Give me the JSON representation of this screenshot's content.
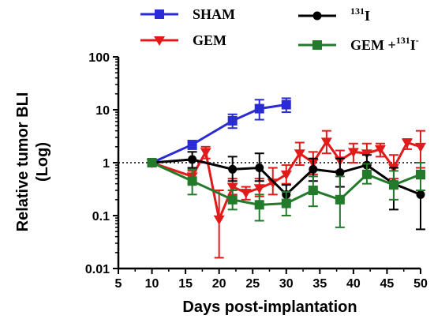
{
  "chart_data": {
    "type": "line",
    "xlabel": "Days post-implantation",
    "ylabel_lines": [
      "Relative tumor BLI",
      "(Log)"
    ],
    "xlim": [
      5,
      50
    ],
    "ylim": [
      0.01,
      100
    ],
    "y_scale": "log",
    "x_ticks": [
      5,
      10,
      15,
      20,
      25,
      30,
      35,
      40,
      45,
      50
    ],
    "y_ticks": [
      0.01,
      0.1,
      1,
      10,
      100
    ],
    "y_tick_labels": [
      "0.01",
      "0.1",
      "1",
      "10",
      "100"
    ],
    "reference_line": {
      "y": 1,
      "style": "dotted"
    },
    "legend": [
      {
        "series": 0,
        "text": "SHAM",
        "sup": "",
        "suffix": ""
      },
      {
        "series": 1,
        "text": "GEM",
        "sup": "",
        "suffix": ""
      },
      {
        "series": 2,
        "text": "",
        "sup": "131",
        "suffix": "I"
      },
      {
        "series": 3,
        "text": "GEM +",
        "sup": "131",
        "suffix": "I",
        "sup2": "-"
      }
    ],
    "series": [
      {
        "color": "#2b2bd6",
        "marker": "square",
        "x": [
          10,
          16,
          22,
          26,
          30
        ],
        "y": [
          1.0,
          2.2,
          6.2,
          10.5,
          12.5
        ],
        "err_low": [
          1.0,
          1.8,
          4.5,
          6.5,
          9.0
        ],
        "err_high": [
          1.0,
          2.6,
          8.2,
          15.5,
          16.5
        ]
      },
      {
        "color": "#e11b1b",
        "marker": "triangle-down",
        "x": [
          10,
          16,
          18,
          20,
          22,
          24,
          26,
          28,
          30,
          32,
          34,
          36,
          38,
          40,
          42,
          44,
          46,
          48,
          50
        ],
        "y": [
          1.0,
          0.55,
          1.6,
          0.085,
          0.35,
          0.27,
          0.33,
          0.42,
          0.6,
          1.5,
          1.0,
          2.5,
          1.1,
          1.6,
          1.5,
          1.8,
          0.8,
          2.4,
          2.0
        ],
        "err_low": [
          1.0,
          0.4,
          1.2,
          0.016,
          0.25,
          0.2,
          0.23,
          0.25,
          0.4,
          0.9,
          0.6,
          1.5,
          0.7,
          1.0,
          0.9,
          1.3,
          0.5,
          1.8,
          0.8
        ],
        "err_high": [
          1.0,
          0.7,
          2.0,
          0.3,
          0.5,
          0.35,
          0.5,
          0.8,
          0.9,
          2.4,
          1.6,
          4.0,
          1.7,
          2.3,
          2.3,
          2.3,
          1.4,
          2.8,
          4.0
        ]
      },
      {
        "color": "#000000",
        "marker": "circle",
        "x": [
          10,
          16,
          22,
          26,
          30,
          34,
          38,
          42,
          46,
          50
        ],
        "y": [
          1.0,
          1.15,
          0.75,
          0.8,
          0.25,
          0.75,
          0.65,
          0.9,
          0.4,
          0.25
        ],
        "err_low": [
          1.0,
          0.8,
          0.45,
          0.45,
          0.17,
          0.45,
          0.35,
          0.6,
          0.13,
          0.055
        ],
        "err_high": [
          1.0,
          1.6,
          1.3,
          1.5,
          0.38,
          1.2,
          1.2,
          1.4,
          0.8,
          0.5
        ]
      },
      {
        "color": "#237a2b",
        "marker": "square",
        "x": [
          10,
          16,
          22,
          26,
          30,
          34,
          38,
          42,
          46,
          50
        ],
        "y": [
          1.0,
          0.45,
          0.2,
          0.16,
          0.17,
          0.3,
          0.2,
          0.6,
          0.38,
          0.6
        ],
        "err_low": [
          1.0,
          0.25,
          0.13,
          0.08,
          0.1,
          0.15,
          0.06,
          0.4,
          0.2,
          0.3
        ],
        "err_high": [
          1.0,
          0.75,
          0.3,
          0.25,
          0.28,
          0.55,
          0.55,
          0.95,
          0.7,
          1.0
        ]
      }
    ]
  }
}
